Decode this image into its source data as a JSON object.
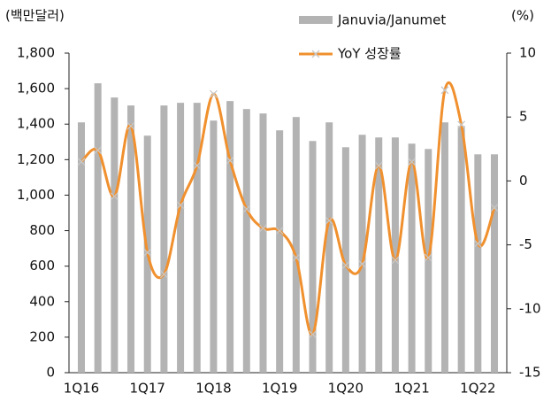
{
  "chart_data": {
    "type": "bar_line",
    "y_label": "(백만달러)",
    "y2_label": "(%)",
    "categories": [
      "1Q16",
      null,
      null,
      null,
      "1Q17",
      null,
      null,
      null,
      "1Q18",
      null,
      null,
      null,
      "1Q19",
      null,
      null,
      null,
      "1Q20",
      null,
      null,
      null,
      "1Q21",
      null,
      null,
      null,
      "1Q22",
      null
    ],
    "series": [
      {
        "name": "Januvia/Janumet",
        "type": "bar",
        "color": "#b3b3b3",
        "values": [
          1410,
          1630,
          1550,
          1505,
          1335,
          1505,
          1520,
          1520,
          1420,
          1530,
          1485,
          1460,
          1365,
          1440,
          1305,
          1410,
          1270,
          1340,
          1325,
          1325,
          1290,
          1260,
          1410,
          1390,
          1230,
          1230
        ]
      },
      {
        "name": "YoY 성장률",
        "type": "line",
        "axis": "y2",
        "color": "#f0902e",
        "marker_color": "#c8c8c8",
        "values": [
          1.5,
          2.4,
          -1.2,
          4.3,
          -5.6,
          -7.3,
          -1.9,
          1.2,
          6.8,
          1.6,
          -2.2,
          -3.7,
          -3.9,
          -6.0,
          -12.0,
          -3.1,
          -6.6,
          -6.5,
          1.2,
          -6.2,
          1.5,
          -6.0,
          7.1,
          4.4,
          -4.9,
          -2.1
        ]
      }
    ],
    "ylim": [
      0,
      1800
    ],
    "yticks": [
      0,
      200,
      400,
      600,
      800,
      {
        "value": 1000,
        "label": "1,000"
      },
      {
        "value": 1200,
        "label": "1,200"
      },
      {
        "value": 1400,
        "label": "1,400"
      },
      {
        "value": 1600,
        "label": "1,600"
      },
      {
        "value": 1800,
        "label": "1,800"
      }
    ],
    "y2lim": [
      -15,
      10
    ],
    "y2ticks": [
      -15,
      -10,
      -5,
      0,
      5,
      10
    ]
  }
}
